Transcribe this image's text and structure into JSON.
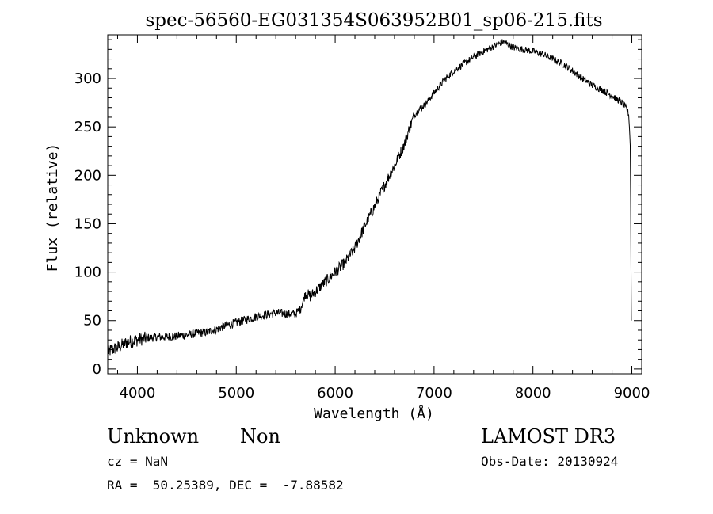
{
  "chart_data": {
    "type": "line",
    "title": "spec-56560-EG031354S063952B01_sp06-215.fits",
    "xlabel": "Wavelength (Å)",
    "ylabel": "Flux (relative)",
    "xlim": [
      3700,
      9100
    ],
    "ylim": [
      -5,
      345
    ],
    "xticks": [
      4000,
      5000,
      6000,
      7000,
      8000,
      9000
    ],
    "yticks": [
      0,
      50,
      100,
      150,
      200,
      250,
      300
    ],
    "grid": false,
    "series": [
      {
        "name": "flux",
        "x": [
          3700,
          3800,
          3900,
          4000,
          4100,
          4200,
          4300,
          4400,
          4500,
          4600,
          4700,
          4800,
          4900,
          5000,
          5100,
          5200,
          5300,
          5400,
          5500,
          5600,
          5650,
          5700,
          5750,
          5800,
          5900,
          6000,
          6100,
          6200,
          6300,
          6400,
          6500,
          6600,
          6700,
          6750,
          6800,
          6850,
          6900,
          7000,
          7100,
          7200,
          7300,
          7400,
          7500,
          7600,
          7700,
          7750,
          7800,
          7900,
          8000,
          8100,
          8200,
          8300,
          8400,
          8500,
          8600,
          8700,
          8800,
          8900,
          8950,
          8970,
          8985,
          8995
        ],
        "y": [
          18,
          22,
          28,
          30,
          32,
          33,
          33,
          34,
          35,
          37,
          38,
          41,
          45,
          48,
          51,
          54,
          56,
          58,
          57,
          57,
          62,
          78,
          75,
          80,
          90,
          100,
          110,
          125,
          148,
          168,
          190,
          210,
          232,
          248,
          262,
          268,
          272,
          285,
          298,
          308,
          315,
          322,
          328,
          333,
          338,
          335,
          332,
          330,
          328,
          325,
          320,
          315,
          308,
          300,
          293,
          288,
          282,
          275,
          268,
          262,
          230,
          50
        ]
      }
    ]
  },
  "info": {
    "object_class": "Unknown",
    "subclass": "Non",
    "survey": "LAMOST DR3",
    "cz": "cz = NaN",
    "obs_date": "Obs-Date: 20130924",
    "coords": "RA =  50.25389, DEC =  -7.88582"
  }
}
